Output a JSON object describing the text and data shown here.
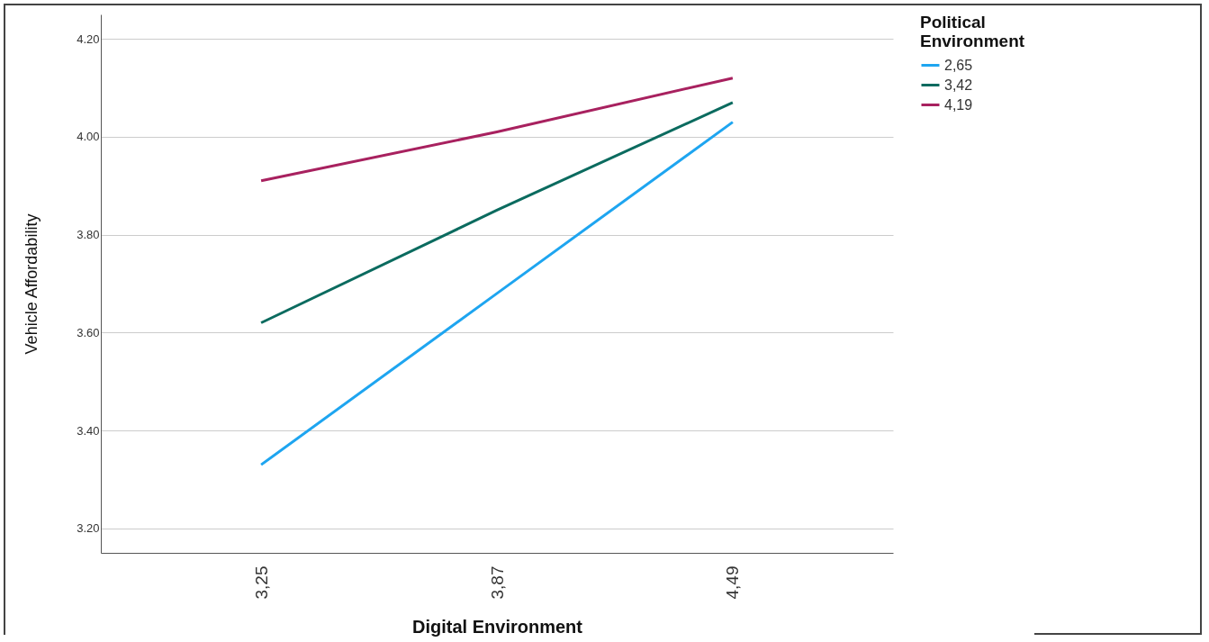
{
  "chart_data": {
    "type": "line",
    "xlabel": "Digital Environment",
    "ylabel": "Vehicle Affordability",
    "legend_title": "Political Environment",
    "categories": [
      "3,25",
      "3,87",
      "4,49"
    ],
    "series": [
      {
        "name": "2,65",
        "color": "#1ea5f0",
        "values": [
          3.33,
          3.68,
          4.03
        ]
      },
      {
        "name": "3,42",
        "color": "#0b6b5f",
        "values": [
          3.62,
          3.85,
          4.07
        ]
      },
      {
        "name": "4,19",
        "color": "#a8215f",
        "values": [
          3.91,
          4.01,
          4.12
        ]
      }
    ],
    "ylim": [
      3.15,
      4.25
    ],
    "yticks": [
      {
        "value": 3.2,
        "label": "3.20"
      },
      {
        "value": 3.4,
        "label": "3.40"
      },
      {
        "value": 3.6,
        "label": "3.60"
      },
      {
        "value": 3.8,
        "label": "3.80"
      },
      {
        "value": 4.0,
        "label": "4.00"
      },
      {
        "value": 4.2,
        "label": "4.20"
      }
    ],
    "grid": "y",
    "legend": "top right",
    "marker": "none",
    "line_style": "solid"
  }
}
